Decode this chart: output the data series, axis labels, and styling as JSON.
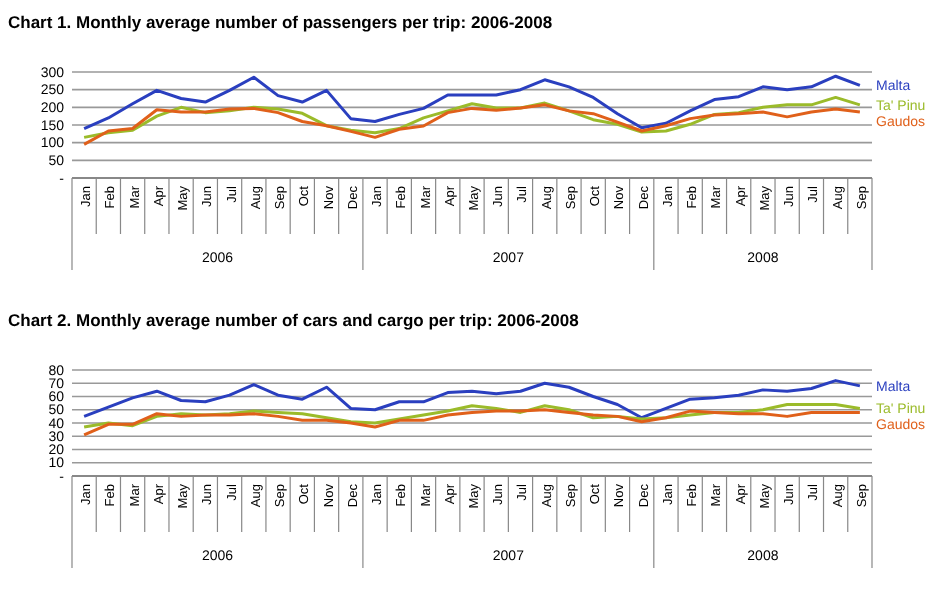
{
  "chart_data": [
    {
      "type": "line",
      "title": "Chart 1. Monthly average number of passengers per trip: 2006-2008",
      "categories": [
        "Jan",
        "Feb",
        "Mar",
        "Apr",
        "May",
        "Jun",
        "Jul",
        "Aug",
        "Sep",
        "Oct",
        "Nov",
        "Dec",
        "Jan",
        "Feb",
        "Mar",
        "Apr",
        "May",
        "Jun",
        "Jul",
        "Aug",
        "Sep",
        "Oct",
        "Nov",
        "Dec",
        "Jan",
        "Feb",
        "Mar",
        "Apr",
        "May",
        "Jun",
        "Jul",
        "Aug",
        "Sep"
      ],
      "series": [
        {
          "name": "Malta",
          "color": "#2a3fbf",
          "values": [
            140,
            170,
            210,
            248,
            225,
            215,
            248,
            285,
            233,
            215,
            248,
            168,
            160,
            180,
            197,
            235,
            235,
            235,
            250,
            278,
            258,
            228,
            182,
            142,
            155,
            190,
            222,
            230,
            258,
            250,
            258,
            288,
            262
          ]
        },
        {
          "name": "Ta' Pinu",
          "color": "#9bbb2a",
          "values": [
            115,
            128,
            135,
            175,
            200,
            185,
            190,
            200,
            195,
            183,
            148,
            135,
            128,
            140,
            170,
            190,
            210,
            198,
            198,
            212,
            190,
            165,
            152,
            130,
            133,
            152,
            180,
            185,
            200,
            207,
            207,
            228,
            207
          ]
        },
        {
          "name": "Gaudos",
          "color": "#e0601a",
          "values": [
            95,
            133,
            140,
            193,
            187,
            187,
            195,
            197,
            185,
            160,
            148,
            132,
            115,
            138,
            147,
            185,
            197,
            192,
            198,
            207,
            190,
            182,
            158,
            133,
            148,
            168,
            178,
            182,
            187,
            173,
            187,
            195,
            187
          ]
        }
      ],
      "ylim": [
        0,
        300
      ],
      "yticks": [
        {
          "value": 0,
          "label": "-"
        },
        50,
        100,
        150,
        200,
        250,
        300
      ],
      "grid": "y",
      "annotations": [
        "2006",
        "2007",
        "2008"
      ]
    },
    {
      "type": "line",
      "title": "Chart 2. Monthly average number of cars and cargo per trip: 2006-2008",
      "categories": [
        "Jan",
        "Feb",
        "Mar",
        "Apr",
        "May",
        "Jun",
        "Jul",
        "Aug",
        "Sep",
        "Oct",
        "Nov",
        "Dec",
        "Jan",
        "Feb",
        "Mar",
        "Apr",
        "May",
        "Jun",
        "Jul",
        "Aug",
        "Sep",
        "Oct",
        "Nov",
        "Dec",
        "Jan",
        "Feb",
        "Mar",
        "Apr",
        "May",
        "Jun",
        "Jul",
        "Aug",
        "Sep"
      ],
      "series": [
        {
          "name": "Malta",
          "color": "#2a3fbf",
          "values": [
            45,
            52,
            59,
            64,
            57,
            56,
            61,
            69,
            61,
            58,
            67,
            51,
            50,
            56,
            56,
            63,
            64,
            62,
            64,
            70,
            67,
            60,
            54,
            44,
            51,
            58,
            59,
            61,
            65,
            64,
            66,
            72,
            68
          ]
        },
        {
          "name": "Ta' Pinu",
          "color": "#9bbb2a",
          "values": [
            37,
            40,
            38,
            45,
            47,
            46,
            47,
            49,
            48,
            47,
            44,
            41,
            40,
            43,
            46,
            49,
            53,
            51,
            48,
            53,
            50,
            44,
            45,
            43,
            44,
            46,
            48,
            48,
            50,
            54,
            54,
            54,
            51
          ]
        },
        {
          "name": "Gaudos",
          "color": "#e0601a",
          "values": [
            31,
            39,
            39,
            47,
            45,
            46,
            46,
            47,
            45,
            42,
            42,
            40,
            37,
            42,
            42,
            46,
            48,
            49,
            49,
            50,
            48,
            46,
            45,
            41,
            44,
            49,
            48,
            47,
            47,
            45,
            48,
            48,
            48
          ]
        }
      ],
      "ylim": [
        0,
        80
      ],
      "yticks": [
        {
          "value": 0,
          "label": "-"
        },
        10,
        20,
        30,
        40,
        50,
        60,
        70,
        80
      ],
      "grid": "y",
      "annotations": [
        "2006",
        "2007",
        "2008"
      ]
    }
  ]
}
